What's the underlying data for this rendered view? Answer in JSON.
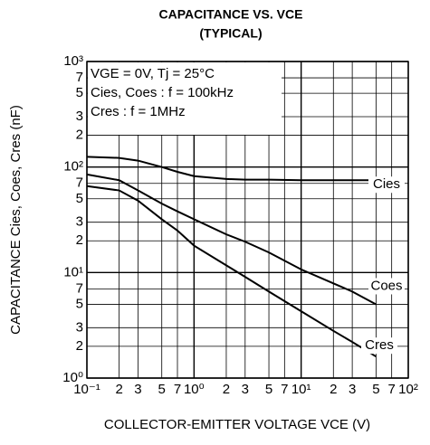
{
  "chart_data": {
    "type": "line",
    "title": "CAPACITANCE VS. VCE",
    "subtitle": "(TYPICAL)",
    "x_label": "COLLECTOR-EMITTER VOLTAGE VCE (V)",
    "y_label": "CAPACITANCE Cies, Coes, Cres (nF)",
    "annotations": [
      "VGE = 0V, Tj = 25°C",
      "Cies, Coes : f = 100kHz",
      "Cres          : f = 1MHz"
    ],
    "xscale": "log",
    "yscale": "log",
    "grid": true,
    "xlim": [
      0.1,
      100
    ],
    "ylim": [
      1,
      1000
    ],
    "xticks": [
      {
        "value": 0.1,
        "label": "10⁻¹"
      },
      {
        "value": 0.2,
        "label": "2"
      },
      {
        "value": 0.3,
        "label": "3"
      },
      {
        "value": 0.5,
        "label": "5"
      },
      {
        "value": 0.7,
        "label": "7"
      },
      {
        "value": 1,
        "label": "10⁰"
      },
      2,
      3,
      5,
      7,
      {
        "value": 10,
        "label": "10¹"
      },
      {
        "value": 20,
        "label": "2"
      },
      {
        "value": 30,
        "label": "3"
      },
      {
        "value": 50,
        "label": "5"
      },
      {
        "value": 70,
        "label": "7"
      },
      {
        "value": 100,
        "label": "10²"
      }
    ],
    "yticks": [
      {
        "value": 1,
        "label": "10⁰"
      },
      2,
      3,
      5,
      7,
      {
        "value": 10,
        "label": "10¹"
      },
      {
        "value": 20,
        "label": "2"
      },
      {
        "value": 30,
        "label": "3"
      },
      {
        "value": 50,
        "label": "5"
      },
      {
        "value": 70,
        "label": "7"
      },
      {
        "value": 100,
        "label": "10²"
      },
      {
        "value": 200,
        "label": "2"
      },
      {
        "value": 300,
        "label": "3"
      },
      {
        "value": 500,
        "label": "5"
      },
      {
        "value": 700,
        "label": "7"
      },
      {
        "value": 1000,
        "label": "10³"
      }
    ],
    "x": [
      0.1,
      0.2,
      0.3,
      0.5,
      0.7,
      1,
      2,
      3,
      5,
      10,
      20,
      30,
      50
    ],
    "series": [
      {
        "name": "Cies",
        "color": "#000000",
        "values": [
          125,
          122,
          115,
          100,
          90,
          82,
          77,
          76,
          76,
          75,
          75,
          75,
          75
        ]
      },
      {
        "name": "Coes",
        "color": "#000000",
        "values": [
          85,
          75,
          60,
          45,
          38,
          32,
          23,
          19.6,
          15.5,
          10.7,
          7.9,
          6.6,
          5
        ]
      },
      {
        "name": "Cres",
        "color": "#000000",
        "values": [
          66,
          60,
          48,
          32,
          25,
          18,
          11.7,
          9.1,
          6.6,
          4.3,
          2.8,
          2.2,
          1.6
        ]
      }
    ]
  }
}
